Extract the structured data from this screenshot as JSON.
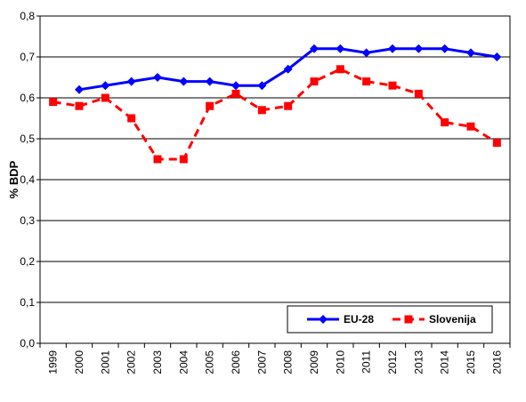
{
  "chart_data": {
    "type": "line",
    "title": "",
    "xlabel": "",
    "ylabel": "% BDP",
    "ylim": [
      0,
      0.8
    ],
    "yticks": [
      "0,0",
      "0,1",
      "0,2",
      "0,3",
      "0,4",
      "0,5",
      "0,6",
      "0,7",
      "0,8"
    ],
    "grid": "horizontal",
    "legend_position": "bottom-right",
    "categories": [
      "1999",
      "2000",
      "2001",
      "2002",
      "2003",
      "2004",
      "2005",
      "2006",
      "2007",
      "2008",
      "2009",
      "2010",
      "2011",
      "2012",
      "2013",
      "2014",
      "2015",
      "2016"
    ],
    "series": [
      {
        "name": "EU-28",
        "color": "#0000FF",
        "marker": "diamond",
        "line_style": "solid",
        "values": [
          null,
          0.62,
          0.63,
          0.64,
          0.65,
          0.64,
          0.64,
          0.63,
          0.63,
          0.67,
          0.72,
          0.72,
          0.71,
          0.72,
          0.72,
          0.72,
          0.71,
          0.7
        ]
      },
      {
        "name": "Slovenija",
        "color": "#FF0000",
        "marker": "square",
        "line_style": "dashed",
        "values": [
          0.59,
          0.58,
          0.6,
          0.55,
          0.45,
          0.45,
          0.58,
          0.61,
          0.57,
          0.58,
          0.64,
          0.67,
          0.64,
          0.63,
          0.61,
          0.54,
          0.53,
          0.49
        ]
      }
    ]
  }
}
